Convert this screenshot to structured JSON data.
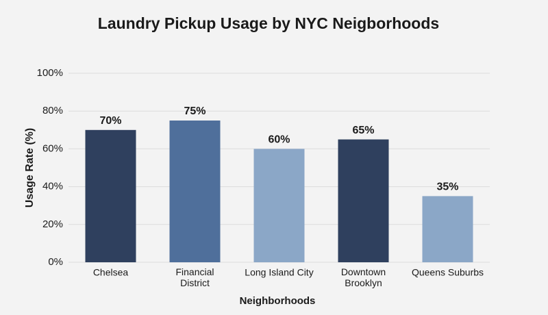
{
  "chart_data": {
    "type": "bar",
    "title": "Laundry Pickup Usage by NYC Neigborhoods",
    "x_label": "Neighborhoods",
    "y_label": "Usage Rate (%)",
    "categories": [
      "Chelsea",
      "Financial District",
      "Long Island City",
      "Downtown Brooklyn",
      "Queens Suburbs"
    ],
    "values": [
      70,
      75,
      60,
      65,
      35
    ],
    "value_labels": [
      "70%",
      "75%",
      "60%",
      "65%",
      "35%"
    ],
    "colors": [
      "#2f405e",
      "#4f6f9b",
      "#8ba7c7",
      "#2f405e",
      "#8ba7c7"
    ],
    "ylim": [
      0,
      100
    ],
    "yticks": [
      {
        "value": 0,
        "label": "0%"
      },
      {
        "value": 20,
        "label": "20%"
      },
      {
        "value": 40,
        "label": "40%"
      },
      {
        "value": 60,
        "label": "60%"
      },
      {
        "value": 80,
        "label": "80%"
      },
      {
        "value": 100,
        "label": "100%"
      }
    ],
    "grid": true
  }
}
